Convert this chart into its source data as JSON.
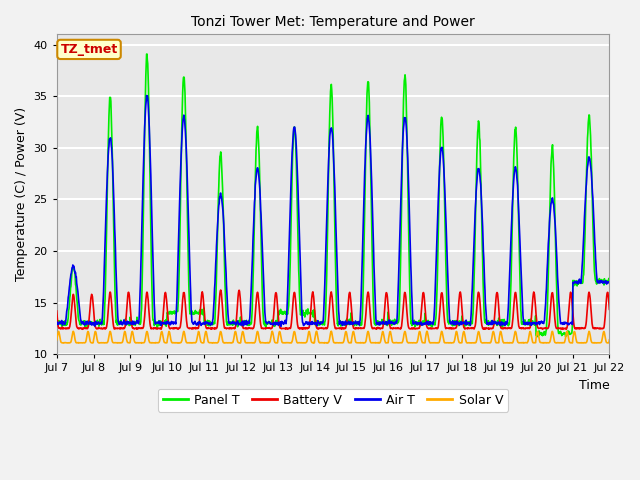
{
  "title": "Tonzi Tower Met: Temperature and Power",
  "xlabel": "Time",
  "ylabel": "Temperature (C) / Power (V)",
  "ylim": [
    10,
    41
  ],
  "yticks": [
    10,
    15,
    20,
    25,
    30,
    35,
    40
  ],
  "xlim_days": [
    7,
    22
  ],
  "xtick_days": [
    7,
    8,
    9,
    10,
    11,
    12,
    13,
    14,
    15,
    16,
    17,
    18,
    19,
    20,
    21,
    22
  ],
  "xtick_labels": [
    "Jul 7",
    "Jul 8",
    "Jul 9",
    "Jul 10",
    "Jul 11",
    "Jul 12",
    "Jul 13",
    "Jul 14",
    "Jul 15",
    "Jul 16",
    "Jul 17",
    "Jul 18",
    "Jul 19",
    "Jul 20",
    "Jul 21",
    "Jul 22"
  ],
  "annotation_text": "TZ_tmet",
  "annotation_color": "#cc0000",
  "annotation_bg": "#ffffcc",
  "annotation_border": "#cc8800",
  "colors": {
    "panel_t": "#00ee00",
    "battery_v": "#ee0000",
    "air_t": "#0000ee",
    "solar_v": "#ffaa00"
  },
  "legend_labels": [
    "Panel T",
    "Battery V",
    "Air T",
    "Solar V"
  ],
  "plot_bg": "#e8e8e8",
  "fig_bg": "#f2f2f2",
  "grid_color": "#ffffff",
  "linewidth": 1.2,
  "panel_peaks": [
    18.5,
    35,
    39,
    37,
    29.5,
    32,
    32,
    36,
    36.5,
    37,
    33,
    32.5,
    32,
    30,
    33
  ],
  "panel_mins": [
    13,
    13,
    13,
    14,
    13,
    13,
    14,
    13,
    13,
    13,
    13,
    13,
    13,
    12,
    17
  ],
  "air_peaks": [
    18.5,
    31,
    35,
    33,
    25.5,
    28,
    32,
    32,
    33,
    33,
    30,
    28,
    28,
    25,
    29
  ],
  "air_mins": [
    13,
    13,
    13,
    13,
    13,
    13,
    13,
    13,
    13,
    13,
    13,
    13,
    13,
    13,
    17
  ],
  "bat_peaks": [
    15.8,
    16,
    16,
    16,
    16.2,
    16,
    16,
    16,
    16,
    16,
    16,
    16,
    16,
    16,
    16
  ],
  "bat_mins": [
    12.5,
    12.5,
    12.5,
    12.5,
    12.5,
    12.5,
    12.5,
    12.5,
    12.5,
    12.5,
    12.5,
    12.5,
    12.5,
    12.5,
    12.5
  ],
  "sol_peaks": [
    12.2,
    12.2,
    12.2,
    12.2,
    12.2,
    12.2,
    12.2,
    12.2,
    12.2,
    12.2,
    12.2,
    12.2,
    12.2,
    12.2,
    12.2
  ],
  "sol_mins": [
    11.1,
    11.1,
    11.1,
    11.1,
    11.1,
    11.1,
    11.1,
    11.1,
    11.1,
    11.1,
    11.1,
    11.1,
    11.1,
    11.1,
    11.1
  ]
}
